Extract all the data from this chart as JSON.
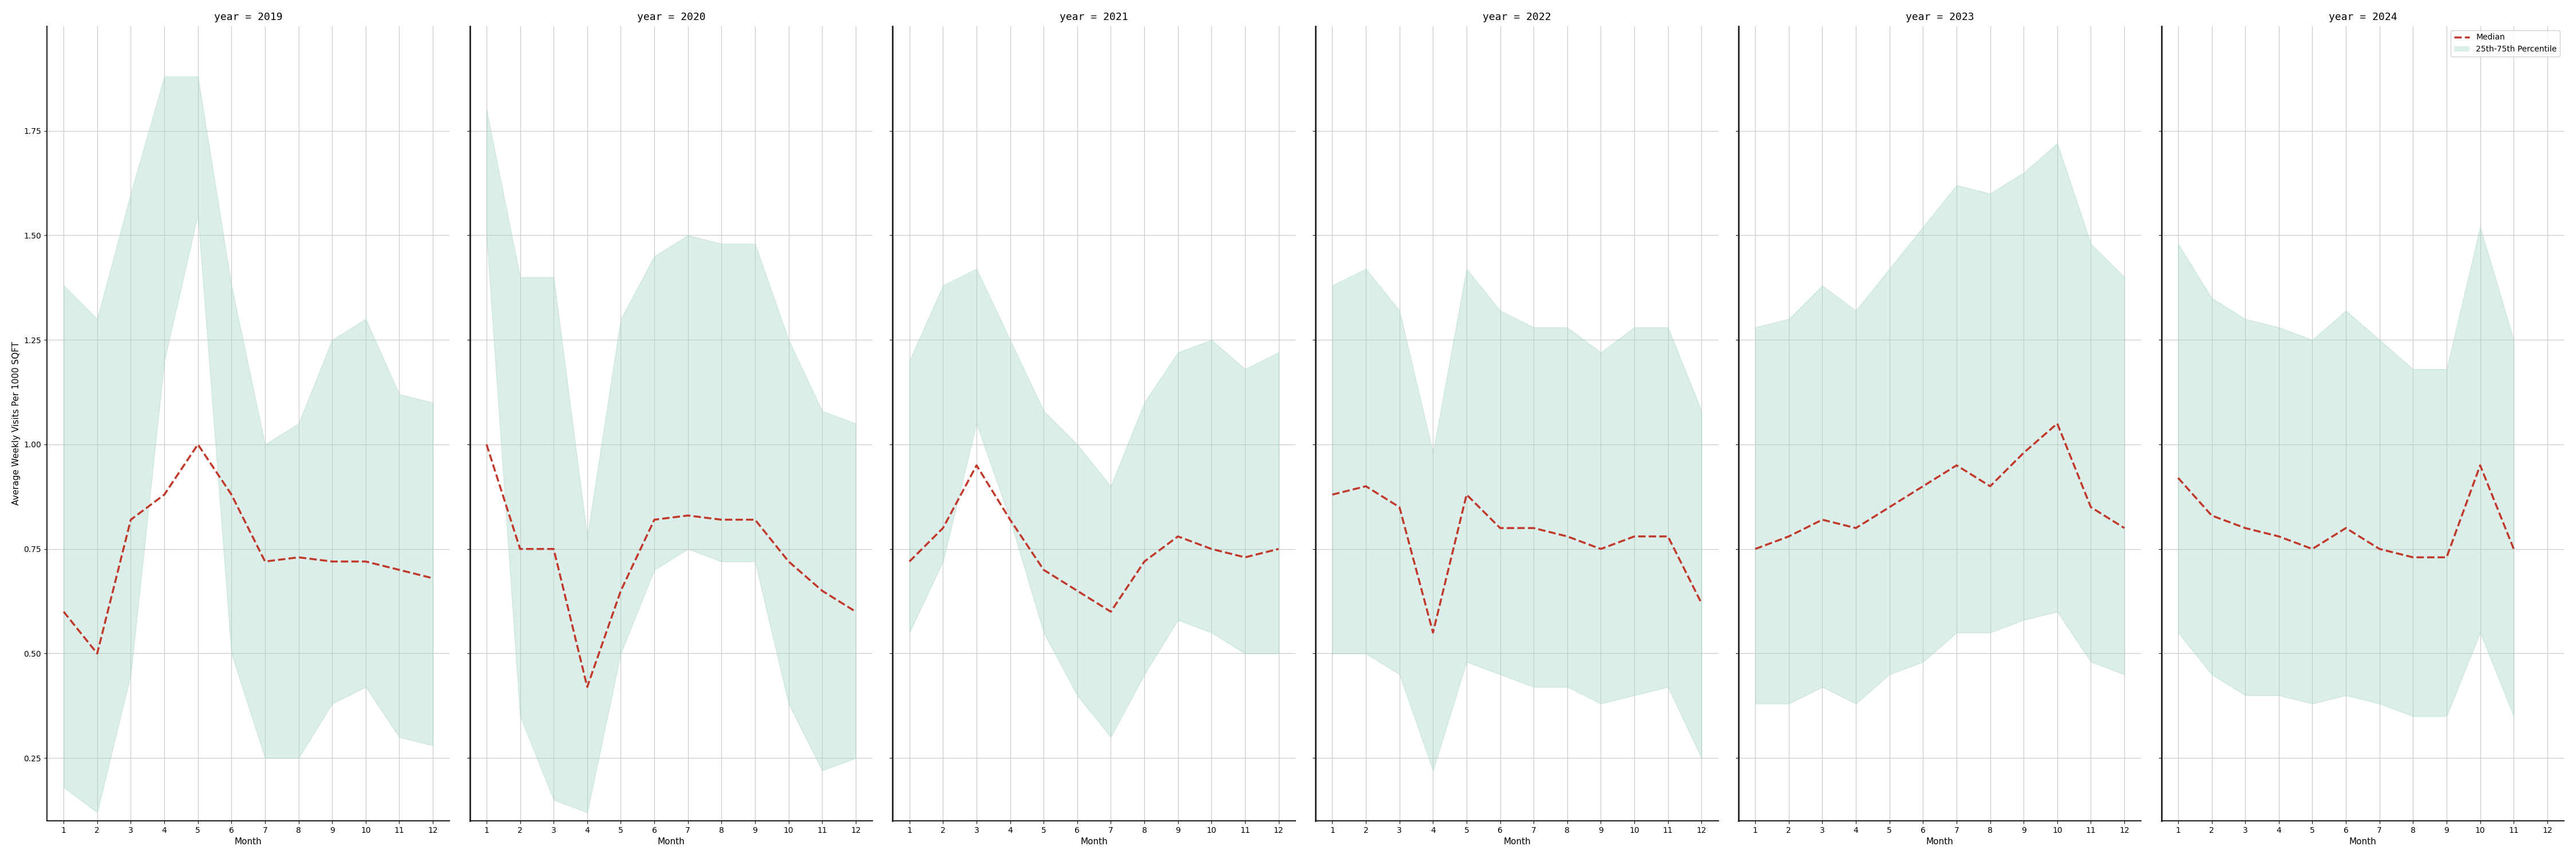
{
  "years": [
    2019,
    2020,
    2021,
    2022,
    2023,
    2024
  ],
  "months": [
    1,
    2,
    3,
    4,
    5,
    6,
    7,
    8,
    9,
    10,
    11,
    12
  ],
  "median": {
    "2019": [
      0.6,
      0.5,
      0.82,
      0.88,
      1.0,
      0.88,
      0.72,
      0.73,
      0.72,
      0.72,
      0.7,
      0.68
    ],
    "2020": [
      1.0,
      0.75,
      0.75,
      0.42,
      0.65,
      0.82,
      0.83,
      0.82,
      0.82,
      0.72,
      0.65,
      0.6
    ],
    "2021": [
      0.72,
      0.8,
      0.95,
      0.82,
      0.7,
      0.65,
      0.6,
      0.72,
      0.78,
      0.75,
      0.73,
      0.75
    ],
    "2022": [
      0.88,
      0.9,
      0.85,
      0.55,
      0.88,
      0.8,
      0.8,
      0.78,
      0.75,
      0.78,
      0.78,
      0.62
    ],
    "2023": [
      0.75,
      0.78,
      0.82,
      0.8,
      0.85,
      0.9,
      0.95,
      0.9,
      0.98,
      1.05,
      0.85,
      0.8
    ],
    "2024": [
      0.92,
      0.83,
      0.8,
      0.78,
      0.75,
      0.8,
      0.75,
      0.73,
      0.73,
      0.95,
      0.75,
      null
    ]
  },
  "p25": {
    "2019": [
      0.18,
      0.12,
      0.45,
      1.2,
      1.55,
      0.5,
      0.25,
      0.25,
      0.38,
      0.42,
      0.3,
      0.28
    ],
    "2020": [
      1.5,
      0.35,
      0.15,
      0.12,
      0.5,
      0.7,
      0.75,
      0.72,
      0.72,
      0.38,
      0.22,
      0.25
    ],
    "2021": [
      0.55,
      0.72,
      1.05,
      0.82,
      0.55,
      0.4,
      0.3,
      0.45,
      0.58,
      0.55,
      0.5,
      0.5
    ],
    "2022": [
      0.5,
      0.5,
      0.45,
      0.22,
      0.48,
      0.45,
      0.42,
      0.42,
      0.38,
      0.4,
      0.42,
      0.25
    ],
    "2023": [
      0.38,
      0.38,
      0.42,
      0.38,
      0.45,
      0.48,
      0.55,
      0.55,
      0.58,
      0.6,
      0.48,
      0.45
    ],
    "2024": [
      0.55,
      0.45,
      0.4,
      0.4,
      0.38,
      0.4,
      0.38,
      0.35,
      0.35,
      0.55,
      0.35,
      null
    ]
  },
  "p75": {
    "2019": [
      1.38,
      1.3,
      1.6,
      1.88,
      1.88,
      1.38,
      1.0,
      1.05,
      1.25,
      1.3,
      1.12,
      1.1
    ],
    "2020": [
      1.8,
      1.4,
      1.4,
      0.78,
      1.3,
      1.45,
      1.5,
      1.48,
      1.48,
      1.25,
      1.08,
      1.05
    ],
    "2021": [
      1.2,
      1.38,
      1.42,
      1.25,
      1.08,
      1.0,
      0.9,
      1.1,
      1.22,
      1.25,
      1.18,
      1.22
    ],
    "2022": [
      1.38,
      1.42,
      1.32,
      0.98,
      1.42,
      1.32,
      1.28,
      1.28,
      1.22,
      1.28,
      1.28,
      1.08
    ],
    "2023": [
      1.28,
      1.3,
      1.38,
      1.32,
      1.42,
      1.52,
      1.62,
      1.6,
      1.65,
      1.72,
      1.48,
      1.4
    ],
    "2024": [
      1.48,
      1.35,
      1.3,
      1.28,
      1.25,
      1.32,
      1.25,
      1.18,
      1.18,
      1.52,
      1.25,
      null
    ]
  },
  "fill_color": "#a8d5c8",
  "fill_alpha": 0.4,
  "line_color": "#c0392b",
  "line_style": "--",
  "line_width": 2.5,
  "ylabel": "Average Weekly Visits Per 1000 SQFT",
  "xlabel": "Month",
  "ylim": [
    0.1,
    2.0
  ],
  "yticks": [
    0.25,
    0.5,
    0.75,
    1.0,
    1.25,
    1.5,
    1.75
  ],
  "bg_color": "white",
  "grid_color": "#c8c8c8",
  "title_fontsize": 13,
  "label_fontsize": 11,
  "tick_fontsize": 10
}
